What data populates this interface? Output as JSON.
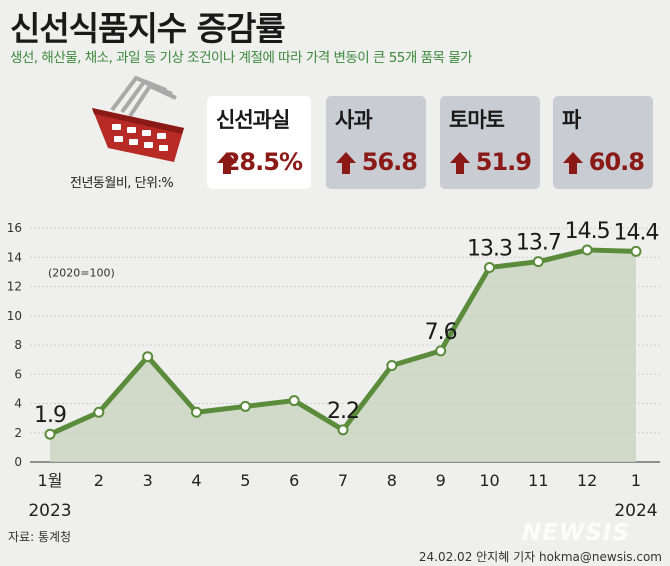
{
  "title": "신선식품지수 증감률",
  "subtitle": "생선, 해산물, 채소, 과일 등 기상 조건이나 계절에 따라 가격 변동이 큰 55개 품목 물가",
  "note": "전년동월비, 단위:%",
  "cards": [
    {
      "label": "신선과실",
      "value": "28.5%"
    },
    {
      "label": "사과",
      "value": "56.8"
    },
    {
      "label": "토마토",
      "value": "51.9"
    },
    {
      "label": "파",
      "value": "60.8"
    }
  ],
  "colors": {
    "line": "#5a8c3c",
    "area": "#c9d4bf",
    "accent": "#8b1a17",
    "subtitle": "#3c8a3c"
  },
  "source": "자료: 통계청",
  "credit": "24.02.02 안지혜 기자 hokma@newsis.com",
  "watermark": "NEWSIS",
  "chart_data": {
    "type": "line",
    "annotation": "(2020=100)",
    "x": [
      "1월",
      "2",
      "3",
      "4",
      "5",
      "6",
      "7",
      "8",
      "9",
      "10",
      "11",
      "12",
      "1"
    ],
    "year_labels": [
      {
        "index": 0,
        "label": "2023"
      },
      {
        "index": 12,
        "label": "2024"
      }
    ],
    "values": [
      1.9,
      3.4,
      7.2,
      3.4,
      3.8,
      4.2,
      2.2,
      6.6,
      7.6,
      13.3,
      13.7,
      14.5,
      14.4
    ],
    "data_labels": [
      "1.9",
      "",
      "",
      "",
      "",
      "",
      "2.2",
      "",
      "7.6",
      "13.3",
      "13.7",
      "14.5",
      "14.4"
    ],
    "yticks": [
      0,
      2,
      4,
      6,
      8,
      10,
      12,
      14,
      16
    ],
    "ylim": [
      0,
      16
    ],
    "grid": true,
    "xlabel": "",
    "ylabel": ""
  }
}
